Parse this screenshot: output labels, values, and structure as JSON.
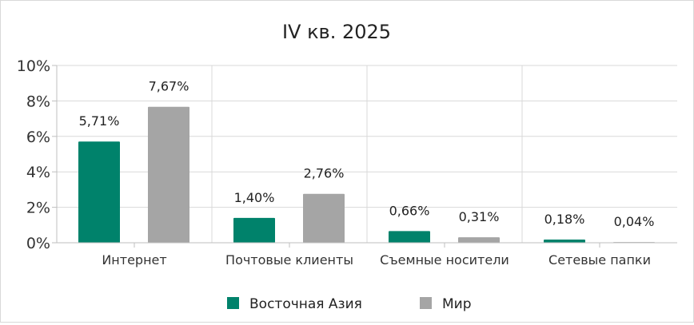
{
  "chart_data": {
    "type": "bar",
    "title": "IV кв. 2025",
    "categories": [
      "Интернет",
      "Почтовые клиенты",
      "Съемные носители",
      "Сетевые папки"
    ],
    "series": [
      {
        "name": "Восточная Азия",
        "color": "#00826B",
        "values": [
          5.71,
          1.4,
          0.66,
          0.18
        ],
        "labels": [
          "5,71%",
          "1,40%",
          "0,66%",
          "0,18%"
        ]
      },
      {
        "name": "Мир",
        "color": "#A5A5A5",
        "values": [
          7.67,
          2.76,
          0.31,
          0.04
        ],
        "labels": [
          "7,67%",
          "2,76%",
          "0,31%",
          "0,04%"
        ]
      }
    ],
    "ylim": [
      0,
      10
    ],
    "yticks": [
      "0%",
      "2%",
      "4%",
      "6%",
      "8%",
      "10%"
    ],
    "grid": true,
    "legend": "bottom"
  }
}
